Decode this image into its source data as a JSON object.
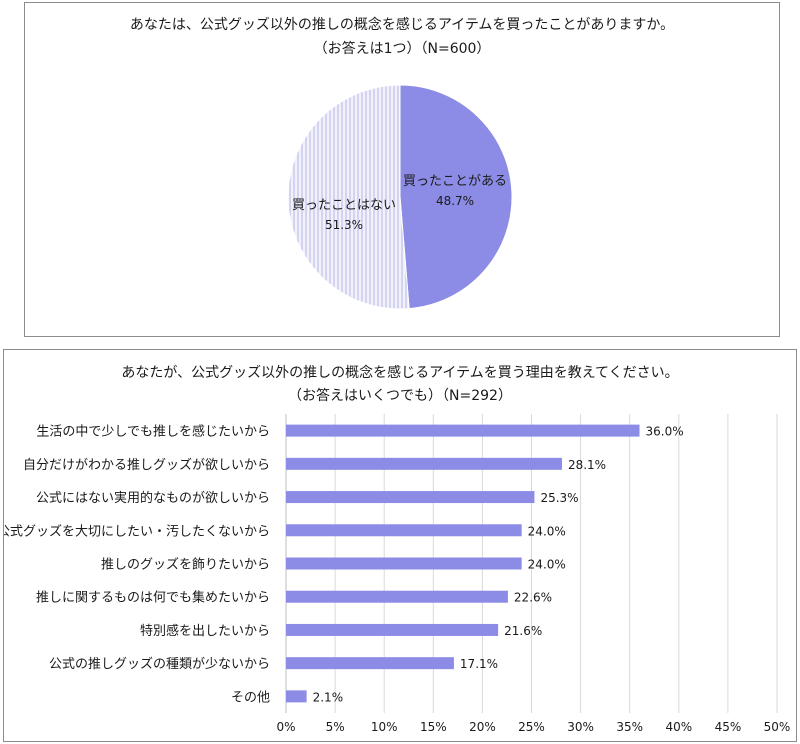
{
  "colors": {
    "accent": "#8c8ce6",
    "hatch_bg": "#f1f1fb",
    "hatch_line": "#b8b8e6",
    "grid": "#d9d9d9"
  },
  "chart_data": [
    {
      "type": "pie",
      "title": "あなたは、公式グッズ以外の推しの概念を感じるアイテムを買ったことがありますか。",
      "subtitle": "（お答えは1つ）（N=600）",
      "slices": [
        {
          "label": "買ったことがある",
          "value": 48.7,
          "value_label": "48.7%"
        },
        {
          "label": "買ったことはない",
          "value": 51.3,
          "value_label": "51.3%"
        }
      ]
    },
    {
      "type": "bar",
      "orientation": "horizontal",
      "title": "あなたが、公式グッズ以外の推しの概念を感じるアイテムを買う理由を教えてください。",
      "subtitle": "（お答えはいくつでも）（N=292）",
      "categories": [
        "生活の中で少しでも推しを感じたいから",
        "自分だけがわかる推しグッズが欲しいから",
        "公式にはない実用的なものが欲しいから",
        "公式グッズを大切にしたい・汚したくないから",
        "推しのグッズを飾りたいから",
        "推しに関するものは何でも集めたいから",
        "特別感を出したいから",
        "公式の推しグッズの種類が少ないから",
        "その他"
      ],
      "values": [
        36.0,
        28.1,
        25.3,
        24.0,
        24.0,
        22.6,
        21.6,
        17.1,
        2.1
      ],
      "value_labels": [
        "36.0%",
        "28.1%",
        "25.3%",
        "24.0%",
        "24.0%",
        "22.6%",
        "21.6%",
        "17.1%",
        "2.1%"
      ],
      "xlim": [
        0,
        50
      ],
      "xticks": [
        "0%",
        "5%",
        "10%",
        "15%",
        "20%",
        "25%",
        "30%",
        "35%",
        "40%",
        "45%",
        "50%"
      ],
      "grid": true
    }
  ]
}
